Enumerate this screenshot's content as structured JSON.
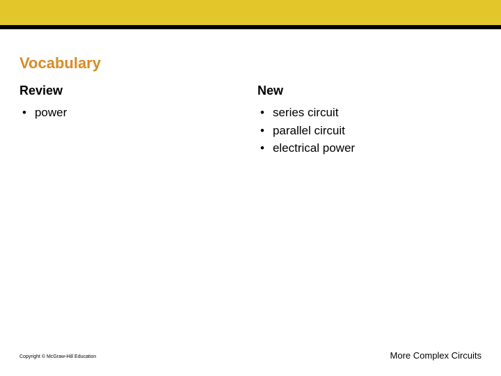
{
  "theme": {
    "topbar_color": "#e3c72a",
    "topbar_border_color": "#000000",
    "background_color": "#ffffff",
    "title_color": "#d78b26",
    "text_color": "#000000",
    "title_fontsize": 22,
    "subheading_fontsize": 18,
    "body_fontsize": 17,
    "footer_fontsize_small": 7,
    "footer_fontsize_right": 13
  },
  "title": "Vocabulary",
  "columns": {
    "left": {
      "heading": "Review",
      "items": [
        "power"
      ]
    },
    "right": {
      "heading": "New",
      "items": [
        "series circuit",
        "parallel circuit",
        "electrical power"
      ]
    }
  },
  "footer": {
    "copyright": "Copyright © McGraw-Hill Education",
    "section": "More Complex Circuits"
  }
}
